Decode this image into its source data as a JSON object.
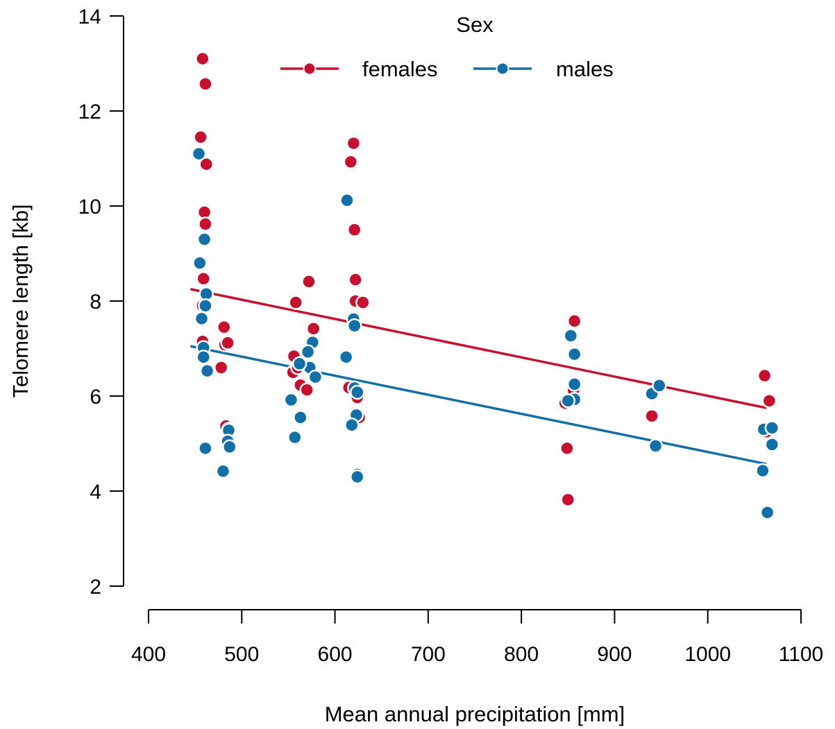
{
  "chart_data": {
    "type": "scatter",
    "title": "",
    "xlabel": "Mean annual precipitation [mm]",
    "ylabel": "Telomere length [kb]",
    "xlim": [
      400,
      1100
    ],
    "ylim": [
      2,
      14
    ],
    "x_ticks": [
      "400",
      "500",
      "600",
      "700",
      "800",
      "900",
      "1000",
      "1100"
    ],
    "y_ticks": [
      "2",
      "4",
      "6",
      "8",
      "10",
      "12",
      "14"
    ],
    "grid": false,
    "legend": {
      "title": "Sex",
      "placement": "top-center",
      "orientation": "horizontal"
    },
    "series": [
      {
        "name": "females",
        "color": "#C8102E",
        "points": [
          [
            458,
            13.1
          ],
          [
            461,
            12.57
          ],
          [
            456,
            11.45
          ],
          [
            462,
            10.88
          ],
          [
            460,
            9.87
          ],
          [
            461,
            9.62
          ],
          [
            459,
            8.47
          ],
          [
            458,
            7.9
          ],
          [
            462,
            7.9
          ],
          [
            458,
            7.15
          ],
          [
            481,
            7.45
          ],
          [
            482,
            7.08
          ],
          [
            485,
            7.12
          ],
          [
            478,
            6.6
          ],
          [
            483,
            5.37
          ],
          [
            486,
            5.3
          ],
          [
            558,
            7.97
          ],
          [
            572,
            8.41
          ],
          [
            577,
            7.42
          ],
          [
            556,
            6.84
          ],
          [
            555,
            6.5
          ],
          [
            563,
            6.23
          ],
          [
            570,
            6.13
          ],
          [
            560,
            6.6
          ],
          [
            620,
            11.32
          ],
          [
            617,
            10.93
          ],
          [
            621,
            9.5
          ],
          [
            622,
            8.45
          ],
          [
            622,
            8.0
          ],
          [
            630,
            7.97
          ],
          [
            615,
            6.18
          ],
          [
            624,
            5.97
          ],
          [
            626,
            5.55
          ],
          [
            857,
            7.58
          ],
          [
            847,
            5.85
          ],
          [
            856,
            6.12
          ],
          [
            849,
            4.9
          ],
          [
            850,
            3.82
          ],
          [
            940,
            5.58
          ],
          [
            1061,
            6.43
          ],
          [
            1062,
            5.3
          ],
          [
            1066,
            5.9
          ],
          [
            1063,
            5.25
          ]
        ],
        "trend": [
          [
            445,
            8.25
          ],
          [
            1063,
            5.75
          ]
        ]
      },
      {
        "name": "males",
        "color": "#1170AA",
        "points": [
          [
            454,
            11.1
          ],
          [
            455,
            8.8
          ],
          [
            460,
            9.3
          ],
          [
            462,
            8.15
          ],
          [
            457,
            7.63
          ],
          [
            461,
            7.9
          ],
          [
            459,
            7.02
          ],
          [
            459,
            6.82
          ],
          [
            463,
            6.53
          ],
          [
            461,
            4.9
          ],
          [
            486,
            5.28
          ],
          [
            485,
            5.05
          ],
          [
            487,
            4.93
          ],
          [
            480,
            4.42
          ],
          [
            576,
            7.13
          ],
          [
            571,
            6.93
          ],
          [
            573,
            6.6
          ],
          [
            562,
            6.68
          ],
          [
            579,
            6.4
          ],
          [
            553,
            5.92
          ],
          [
            563,
            5.55
          ],
          [
            557,
            5.13
          ],
          [
            613,
            10.12
          ],
          [
            620,
            7.62
          ],
          [
            621,
            7.48
          ],
          [
            612,
            6.82
          ],
          [
            621,
            6.17
          ],
          [
            624,
            6.08
          ],
          [
            623,
            5.6
          ],
          [
            618,
            5.39
          ],
          [
            624,
            4.35
          ],
          [
            624,
            4.3
          ],
          [
            853,
            7.27
          ],
          [
            857,
            6.88
          ],
          [
            857,
            6.25
          ],
          [
            857,
            5.93
          ],
          [
            850,
            5.9
          ],
          [
            940,
            6.05
          ],
          [
            948,
            6.22
          ],
          [
            944,
            4.95
          ],
          [
            1060,
            5.3
          ],
          [
            1069,
            5.33
          ],
          [
            1069,
            4.98
          ],
          [
            1059,
            4.43
          ],
          [
            1064,
            3.55
          ]
        ],
        "trend": [
          [
            445,
            7.05
          ],
          [
            1063,
            4.57
          ]
        ]
      }
    ]
  }
}
